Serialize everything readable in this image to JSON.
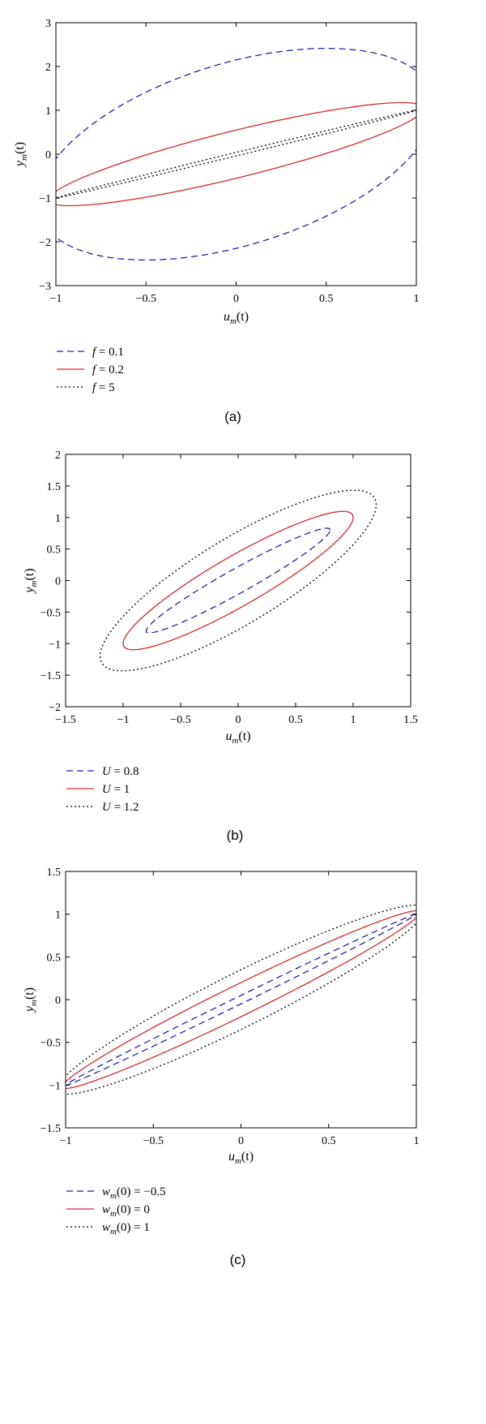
{
  "chart_data": [
    {
      "type": "line",
      "panel": "(a)",
      "xlabel": "u_m(t)",
      "xlabel_main": "u",
      "xlabel_sub": "m",
      "xlabel_tail": "(t)",
      "ylabel": "y_m(t)",
      "ylabel_main": "y",
      "ylabel_sub": "m",
      "ylabel_tail": "(t)",
      "xlim": [
        -1,
        1
      ],
      "ylim": [
        -3,
        3
      ],
      "xticks": [
        -1,
        -0.5,
        0,
        0.5,
        1
      ],
      "xtick_labels": [
        "−1",
        "−0.5",
        "0",
        "0.5",
        "1"
      ],
      "yticks": [
        -3,
        -2,
        -1,
        0,
        1,
        2,
        3
      ],
      "ytick_labels": [
        "−3",
        "−2",
        "−1",
        "0",
        "1",
        "2",
        "3"
      ],
      "grid": false,
      "legend_position": "below",
      "series": [
        {
          "name": "f = 0.1",
          "legend_main": "f",
          "legend_sub": "",
          "legend_tail": " = 0.1",
          "style": "dashed",
          "color": "#1f1fb4",
          "a": 1.1,
          "b": 2.15
        },
        {
          "name": "f = 0.2",
          "legend_main": "f",
          "legend_sub": "",
          "legend_tail": " = 0.2",
          "style": "solid",
          "color": "#d62728",
          "a": 1.04,
          "b": 0.55
        },
        {
          "name": "f = 5",
          "legend_main": "f",
          "legend_sub": "",
          "legend_tail": " = 5",
          "style": "dotted",
          "color": "#000000",
          "a": 1.0,
          "b": 0.04
        }
      ]
    },
    {
      "type": "line",
      "panel": "(b)",
      "xlabel": "u_m(t)",
      "xlabel_main": "u",
      "xlabel_sub": "m",
      "xlabel_tail": "(t)",
      "ylabel": "y_m(t)",
      "ylabel_main": "y",
      "ylabel_sub": "m",
      "ylabel_tail": "(t)",
      "xlim": [
        -1.5,
        1.5
      ],
      "ylim": [
        -2,
        2
      ],
      "xticks": [
        -1.5,
        -1,
        -0.5,
        0,
        0.5,
        1,
        1.5
      ],
      "xtick_labels": [
        "−1.5",
        "−1",
        "−0.5",
        "0",
        "0.5",
        "1",
        "1.5"
      ],
      "yticks": [
        -2,
        -1.5,
        -1,
        -0.5,
        0,
        0.5,
        1,
        1.5,
        2
      ],
      "ytick_labels": [
        "−2",
        "−1.5",
        "−1",
        "−0.5",
        "0",
        "0.5",
        "1",
        "1.5",
        "2"
      ],
      "grid": false,
      "legend_position": "below",
      "series": [
        {
          "name": "U = 0.8",
          "legend_main": "U",
          "legend_sub": "",
          "legend_tail": " = 0.8",
          "style": "dashed",
          "color": "#1f1fb4",
          "a": 0.8,
          "b": 0.22
        },
        {
          "name": "U = 1",
          "legend_main": "U",
          "legend_sub": "",
          "legend_tail": " = 1",
          "style": "solid",
          "color": "#d62728",
          "a": 1.0,
          "b": 0.45
        },
        {
          "name": "U = 1.2",
          "legend_main": "U",
          "legend_sub": "",
          "legend_tail": " = 1.2",
          "style": "dotted",
          "color": "#000000",
          "a": 1.2,
          "b": 0.78
        }
      ]
    },
    {
      "type": "line",
      "panel": "(c)",
      "xlabel": "u_m(t)",
      "xlabel_main": "u",
      "xlabel_sub": "m",
      "xlabel_tail": "(t)",
      "ylabel": "y_m(t)",
      "ylabel_main": "y",
      "ylabel_sub": "m",
      "ylabel_tail": "(t)",
      "xlim": [
        -1,
        1
      ],
      "ylim": [
        -1.5,
        1.5
      ],
      "xticks": [
        -1,
        -0.5,
        0,
        0.5,
        1
      ],
      "xtick_labels": [
        "−1",
        "−0.5",
        "0",
        "0.5",
        "1"
      ],
      "yticks": [
        -1.5,
        -1,
        -0.5,
        0,
        0.5,
        1,
        1.5
      ],
      "ytick_labels": [
        "−1.5",
        "−1",
        "−0.5",
        "0",
        "0.5",
        "1",
        "1.5"
      ],
      "grid": false,
      "legend_position": "below",
      "series": [
        {
          "name": "w_m(0) = −0.5",
          "legend_main": "w",
          "legend_sub": "m",
          "legend_tail": "(0) = −0.5",
          "style": "dashed",
          "color": "#1f1fb4",
          "a": 1.0,
          "b": 0.05
        },
        {
          "name": "w_m(0) = 0",
          "legend_main": "w",
          "legend_sub": "m",
          "legend_tail": "(0) = 0",
          "style": "solid",
          "color": "#d62728",
          "a": 1.02,
          "b": 0.2
        },
        {
          "name": "w_m(0) = 1",
          "legend_main": "w",
          "legend_sub": "m",
          "legend_tail": "(0) = 1",
          "style": "dotted",
          "color": "#000000",
          "a": 1.05,
          "b": 0.35
        }
      ]
    }
  ]
}
